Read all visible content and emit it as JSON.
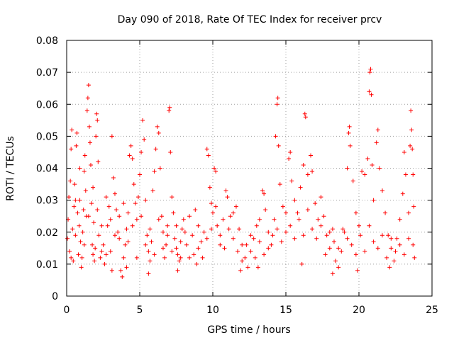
{
  "chart_data": {
    "type": "scatter",
    "title": "Day 090 of 2018, Rate Of TEC Index for receiver prcv",
    "xlabel": "GPS time / hours",
    "ylabel": "ROTI / TECUs",
    "xlim": [
      0,
      25
    ],
    "ylim": [
      0,
      0.08
    ],
    "xticks": [
      0,
      5,
      10,
      15,
      20,
      25
    ],
    "yticks": [
      0,
      0.01,
      0.02,
      0.03,
      0.04,
      0.05,
      0.06,
      0.07,
      0.08
    ],
    "xtick_labels": [
      "0",
      "5",
      "10",
      "15",
      "20",
      "25"
    ],
    "ytick_labels": [
      "0",
      "0.01",
      "0.02",
      "0.03",
      "0.04",
      "0.05",
      "0.06",
      "0.07",
      "0.08"
    ],
    "grid": true,
    "marker": "+",
    "color": "#ff0000",
    "series": [
      {
        "name": "prcv",
        "points": [
          [
            0.05,
            0.018
          ],
          [
            0.1,
            0.024
          ],
          [
            0.15,
            0.031
          ],
          [
            0.2,
            0.014
          ],
          [
            0.25,
            0.036
          ],
          [
            0.3,
            0.046
          ],
          [
            0.35,
            0.052
          ],
          [
            0.4,
            0.021
          ],
          [
            0.45,
            0.011
          ],
          [
            0.5,
            0.028
          ],
          [
            0.55,
            0.035
          ],
          [
            0.6,
            0.019
          ],
          [
            0.65,
            0.047
          ],
          [
            0.7,
            0.051
          ],
          [
            0.75,
            0.026
          ],
          [
            0.8,
            0.013
          ],
          [
            0.85,
            0.022
          ],
          [
            0.9,
            0.03
          ],
          [
            0.95,
            0.017
          ],
          [
            1.0,
            0.009
          ],
          [
            1.05,
            0.012
          ],
          [
            1.1,
            0.02
          ],
          [
            1.15,
            0.027
          ],
          [
            1.2,
            0.039
          ],
          [
            1.25,
            0.044
          ],
          [
            1.3,
            0.033
          ],
          [
            1.35,
            0.025
          ],
          [
            1.4,
            0.058
          ],
          [
            1.45,
            0.062
          ],
          [
            1.5,
            0.066
          ],
          [
            1.55,
            0.053
          ],
          [
            1.6,
            0.048
          ],
          [
            1.65,
            0.041
          ],
          [
            1.7,
            0.029
          ],
          [
            1.75,
            0.016
          ],
          [
            1.8,
            0.034
          ],
          [
            1.85,
            0.023
          ],
          [
            1.9,
            0.011
          ],
          [
            1.95,
            0.015
          ],
          [
            2.0,
            0.05
          ],
          [
            2.05,
            0.057
          ],
          [
            2.1,
            0.055
          ],
          [
            2.15,
            0.042
          ],
          [
            2.2,
            0.019
          ],
          [
            2.3,
            0.012
          ],
          [
            2.4,
            0.014
          ],
          [
            2.5,
            0.016
          ],
          [
            2.6,
            0.01
          ],
          [
            2.7,
            0.013
          ],
          [
            2.8,
            0.022
          ],
          [
            2.9,
            0.028
          ],
          [
            3.0,
            0.024
          ],
          [
            3.1,
            0.05
          ],
          [
            3.2,
            0.037
          ],
          [
            3.3,
            0.032
          ],
          [
            3.4,
            0.027
          ],
          [
            3.5,
            0.02
          ],
          [
            3.6,
            0.018
          ],
          [
            3.7,
            0.008
          ],
          [
            3.8,
            0.006
          ],
          [
            3.9,
            0.012
          ],
          [
            4.0,
            0.016
          ],
          [
            4.1,
            0.021
          ],
          [
            4.2,
            0.026
          ],
          [
            4.3,
            0.044
          ],
          [
            4.4,
            0.047
          ],
          [
            4.5,
            0.043
          ],
          [
            4.6,
            0.035
          ],
          [
            4.7,
            0.029
          ],
          [
            4.8,
            0.024
          ],
          [
            4.9,
            0.031
          ],
          [
            5.0,
            0.038
          ],
          [
            5.1,
            0.045
          ],
          [
            5.2,
            0.055
          ],
          [
            5.3,
            0.049
          ],
          [
            5.4,
            0.03
          ],
          [
            5.5,
            0.019
          ],
          [
            5.6,
            0.014
          ],
          [
            5.7,
            0.011
          ],
          [
            5.8,
            0.017
          ],
          [
            5.9,
            0.033
          ],
          [
            6.0,
            0.039
          ],
          [
            6.1,
            0.046
          ],
          [
            6.2,
            0.053
          ],
          [
            6.3,
            0.051
          ],
          [
            6.4,
            0.04
          ],
          [
            6.5,
            0.025
          ],
          [
            6.6,
            0.02
          ],
          [
            6.7,
            0.012
          ],
          [
            6.8,
            0.016
          ],
          [
            6.9,
            0.022
          ],
          [
            7.0,
            0.058
          ],
          [
            7.05,
            0.059
          ],
          [
            7.1,
            0.045
          ],
          [
            7.2,
            0.031
          ],
          [
            7.3,
            0.026
          ],
          [
            7.4,
            0.018
          ],
          [
            7.5,
            0.015
          ],
          [
            7.6,
            0.013
          ],
          [
            7.7,
            0.011
          ],
          [
            7.8,
            0.017
          ],
          [
            7.9,
            0.021
          ],
          [
            8.0,
            0.024
          ],
          [
            8.2,
            0.016
          ],
          [
            8.4,
            0.012
          ],
          [
            8.6,
            0.019
          ],
          [
            8.8,
            0.027
          ],
          [
            9.0,
            0.022
          ],
          [
            9.2,
            0.017
          ],
          [
            9.4,
            0.02
          ],
          [
            9.6,
            0.046
          ],
          [
            9.7,
            0.044
          ],
          [
            9.8,
            0.034
          ],
          [
            9.9,
            0.029
          ],
          [
            10.0,
            0.026
          ],
          [
            10.1,
            0.04
          ],
          [
            10.2,
            0.039
          ],
          [
            10.3,
            0.022
          ],
          [
            10.5,
            0.016
          ],
          [
            10.7,
            0.024
          ],
          [
            10.9,
            0.033
          ],
          [
            11.0,
            0.031
          ],
          [
            11.2,
            0.025
          ],
          [
            11.4,
            0.018
          ],
          [
            11.6,
            0.028
          ],
          [
            11.8,
            0.021
          ],
          [
            12.0,
            0.016
          ],
          [
            12.2,
            0.012
          ],
          [
            12.4,
            0.009
          ],
          [
            12.6,
            0.014
          ],
          [
            12.8,
            0.018
          ],
          [
            13.0,
            0.022
          ],
          [
            13.2,
            0.024
          ],
          [
            13.4,
            0.033
          ],
          [
            13.5,
            0.032
          ],
          [
            13.6,
            0.027
          ],
          [
            13.8,
            0.02
          ],
          [
            14.0,
            0.016
          ],
          [
            14.2,
            0.024
          ],
          [
            14.3,
            0.05
          ],
          [
            14.4,
            0.06
          ],
          [
            14.45,
            0.062
          ],
          [
            14.5,
            0.047
          ],
          [
            14.6,
            0.035
          ],
          [
            14.8,
            0.028
          ],
          [
            15.0,
            0.02
          ],
          [
            15.2,
            0.043
          ],
          [
            15.3,
            0.045
          ],
          [
            15.4,
            0.036
          ],
          [
            15.6,
            0.03
          ],
          [
            15.8,
            0.026
          ],
          [
            16.0,
            0.034
          ],
          [
            16.2,
            0.041
          ],
          [
            16.3,
            0.057
          ],
          [
            16.35,
            0.056
          ],
          [
            16.5,
            0.038
          ],
          [
            16.7,
            0.044
          ],
          [
            16.8,
            0.039
          ],
          [
            17.0,
            0.029
          ],
          [
            17.2,
            0.024
          ],
          [
            17.4,
            0.031
          ],
          [
            17.6,
            0.025
          ],
          [
            17.8,
            0.019
          ],
          [
            18.0,
            0.015
          ],
          [
            18.2,
            0.021
          ],
          [
            18.4,
            0.011
          ],
          [
            18.6,
            0.009
          ],
          [
            18.8,
            0.014
          ],
          [
            19.0,
            0.02
          ],
          [
            19.2,
            0.04
          ],
          [
            19.3,
            0.051
          ],
          [
            19.35,
            0.053
          ],
          [
            19.4,
            0.047
          ],
          [
            19.6,
            0.036
          ],
          [
            19.8,
            0.026
          ],
          [
            20.0,
            0.022
          ],
          [
            20.2,
            0.039
          ],
          [
            20.4,
            0.038
          ],
          [
            20.6,
            0.043
          ],
          [
            20.7,
            0.064
          ],
          [
            20.75,
            0.07
          ],
          [
            20.8,
            0.071
          ],
          [
            20.85,
            0.063
          ],
          [
            20.9,
            0.041
          ],
          [
            21.0,
            0.03
          ],
          [
            21.2,
            0.048
          ],
          [
            21.3,
            0.052
          ],
          [
            21.4,
            0.04
          ],
          [
            21.6,
            0.033
          ],
          [
            21.8,
            0.026
          ],
          [
            22.0,
            0.019
          ],
          [
            22.2,
            0.015
          ],
          [
            22.4,
            0.011
          ],
          [
            22.6,
            0.018
          ],
          [
            22.8,
            0.024
          ],
          [
            23.0,
            0.032
          ],
          [
            23.1,
            0.045
          ],
          [
            23.2,
            0.038
          ],
          [
            23.4,
            0.026
          ],
          [
            23.5,
            0.047
          ],
          [
            23.55,
            0.058
          ],
          [
            23.6,
            0.052
          ],
          [
            23.65,
            0.046
          ],
          [
            23.7,
            0.038
          ],
          [
            23.75,
            0.028
          ],
          [
            23.8,
            0.012
          ],
          [
            0.3,
            0.012
          ],
          [
            0.6,
            0.03
          ],
          [
            0.9,
            0.04
          ],
          [
            1.2,
            0.016
          ],
          [
            1.5,
            0.025
          ],
          [
            1.8,
            0.013
          ],
          [
            2.1,
            0.027
          ],
          [
            2.4,
            0.022
          ],
          [
            2.7,
            0.031
          ],
          [
            3.0,
            0.014
          ],
          [
            3.3,
            0.019
          ],
          [
            3.6,
            0.025
          ],
          [
            3.9,
            0.029
          ],
          [
            4.2,
            0.017
          ],
          [
            4.5,
            0.022
          ],
          [
            4.8,
            0.012
          ],
          [
            5.1,
            0.025
          ],
          [
            5.4,
            0.016
          ],
          [
            5.7,
            0.021
          ],
          [
            6.0,
            0.013
          ],
          [
            6.3,
            0.024
          ],
          [
            6.6,
            0.015
          ],
          [
            6.9,
            0.019
          ],
          [
            7.2,
            0.014
          ],
          [
            7.5,
            0.022
          ],
          [
            7.8,
            0.012
          ],
          [
            8.1,
            0.02
          ],
          [
            8.4,
            0.025
          ],
          [
            8.7,
            0.013
          ],
          [
            9.0,
            0.015
          ],
          [
            9.3,
            0.012
          ],
          [
            9.6,
            0.018
          ],
          [
            9.9,
            0.021
          ],
          [
            10.2,
            0.028
          ],
          [
            10.5,
            0.019
          ],
          [
            10.8,
            0.015
          ],
          [
            11.1,
            0.021
          ],
          [
            11.4,
            0.026
          ],
          [
            11.7,
            0.014
          ],
          [
            12.0,
            0.011
          ],
          [
            12.3,
            0.016
          ],
          [
            12.6,
            0.019
          ],
          [
            12.9,
            0.012
          ],
          [
            13.2,
            0.017
          ],
          [
            13.5,
            0.013
          ],
          [
            13.8,
            0.015
          ],
          [
            14.1,
            0.019
          ],
          [
            14.4,
            0.021
          ],
          [
            14.7,
            0.017
          ],
          [
            15.0,
            0.026
          ],
          [
            15.3,
            0.022
          ],
          [
            15.6,
            0.018
          ],
          [
            15.9,
            0.024
          ],
          [
            16.2,
            0.019
          ],
          [
            16.5,
            0.027
          ],
          [
            16.8,
            0.021
          ],
          [
            17.1,
            0.018
          ],
          [
            17.4,
            0.022
          ],
          [
            17.7,
            0.013
          ],
          [
            18.0,
            0.02
          ],
          [
            18.3,
            0.017
          ],
          [
            18.6,
            0.015
          ],
          [
            18.9,
            0.021
          ],
          [
            19.2,
            0.018
          ],
          [
            19.5,
            0.016
          ],
          [
            19.8,
            0.013
          ],
          [
            20.1,
            0.019
          ],
          [
            20.4,
            0.014
          ],
          [
            20.7,
            0.022
          ],
          [
            21.0,
            0.017
          ],
          [
            21.3,
            0.015
          ],
          [
            21.6,
            0.019
          ],
          [
            21.9,
            0.012
          ],
          [
            22.2,
            0.018
          ],
          [
            22.5,
            0.014
          ],
          [
            22.8,
            0.016
          ],
          [
            23.1,
            0.013
          ],
          [
            23.4,
            0.018
          ],
          [
            23.7,
            0.016
          ],
          [
            3.1,
            0.008
          ],
          [
            4.1,
            0.009
          ],
          [
            5.6,
            0.007
          ],
          [
            7.6,
            0.008
          ],
          [
            8.9,
            0.01
          ],
          [
            11.9,
            0.008
          ],
          [
            13.1,
            0.009
          ],
          [
            16.1,
            0.01
          ],
          [
            18.2,
            0.007
          ],
          [
            19.9,
            0.008
          ],
          [
            22.1,
            0.009
          ]
        ]
      }
    ]
  }
}
